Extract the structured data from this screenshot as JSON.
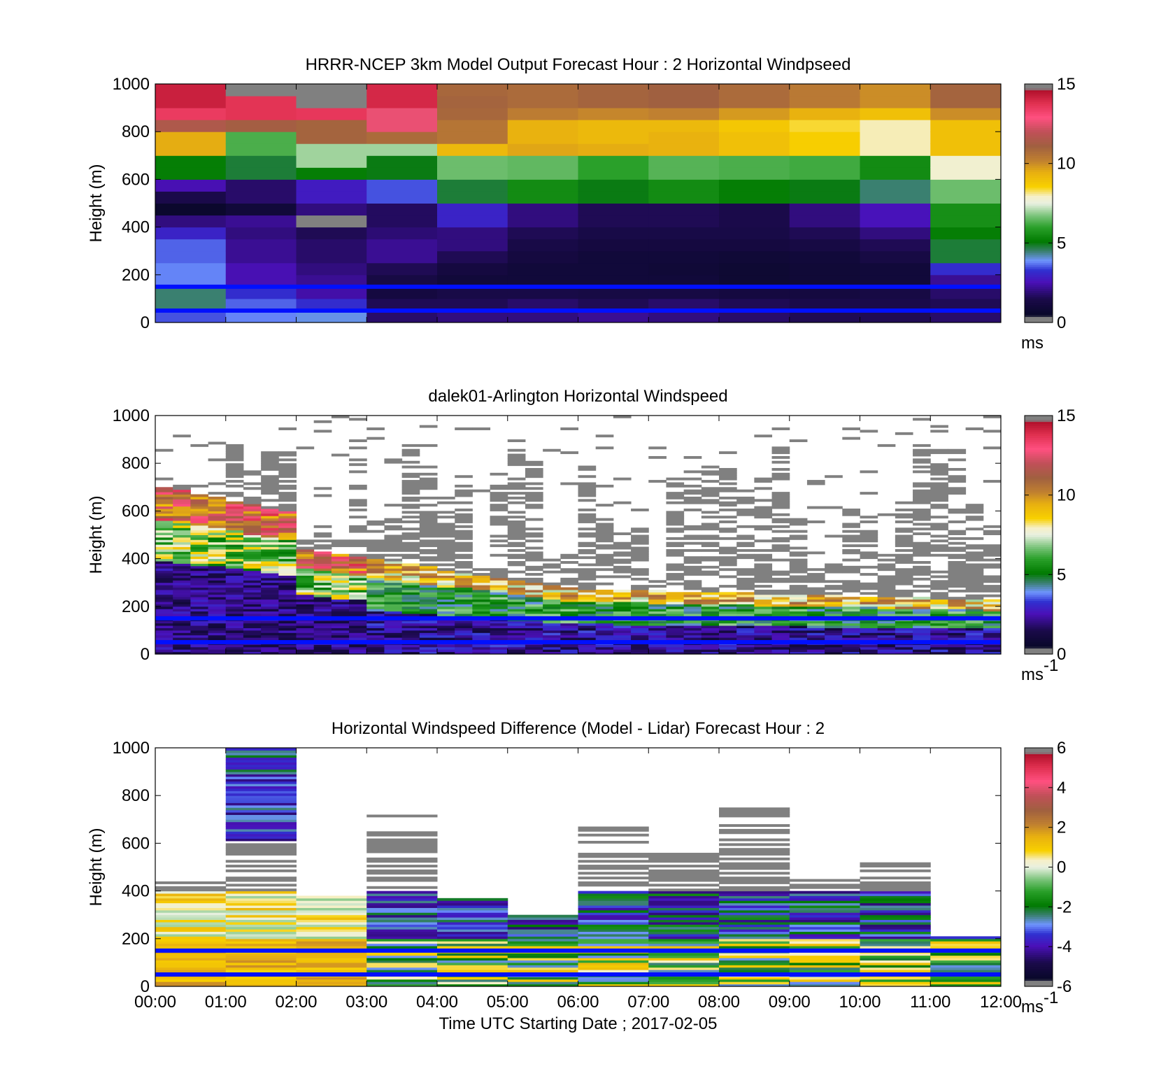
{
  "chart_data": [
    {
      "type": "heatmap",
      "title": "HRRR-NCEP 3km Model Output   Forecast Hour : 2 Horizontal Windpseed",
      "ylabel": "Height (m)",
      "xlabel": "",
      "ylim": [
        0,
        1000
      ],
      "xlim": [
        0,
        12
      ],
      "yticks": [
        0,
        200,
        400,
        600,
        800,
        1000
      ],
      "colorbar": {
        "range": [
          0,
          15
        ],
        "ticks": [
          0,
          5,
          10,
          15
        ],
        "unit": "ms",
        "unit_exp": ""
      },
      "heights": [
        25,
        75,
        125,
        175,
        225,
        275,
        325,
        375,
        425,
        475,
        525,
        575,
        625,
        675,
        725,
        775,
        825,
        875,
        925,
        975
      ],
      "columns": [
        {
          "x": 0,
          "values": [
            3.5,
            4.5,
            4.5,
            3.8,
            3.8,
            3.6,
            3.6,
            3.0,
            2.0,
            0.6,
            1.5,
            2.5,
            5.2,
            5.2,
            9.5,
            9.5,
            11.5,
            13.5,
            14.2,
            14.2
          ]
        },
        {
          "x": 1,
          "values": [
            3.8,
            3.6,
            3.2,
            2.5,
            2.5,
            2.2,
            2.2,
            2.0,
            2.2,
            1.0,
            1.8,
            1.8,
            4.8,
            4.8,
            6.3,
            6.3,
            11.2,
            13.7,
            13.7,
            15.5
          ]
        },
        {
          "x": 2,
          "values": [
            4.0,
            3.2,
            2.4,
            2.2,
            2.0,
            1.8,
            1.8,
            1.6,
            15.5,
            2.0,
            2.8,
            2.8,
            5.2,
            7.0,
            7.0,
            11.0,
            11.0,
            13.6,
            15.5,
            15.5
          ]
        },
        {
          "x": 3,
          "values": [
            1.8,
            1.6,
            1.2,
            1.3,
            1.6,
            2.2,
            2.2,
            1.9,
            1.7,
            1.7,
            3.5,
            3.5,
            5.0,
            5.0,
            7.0,
            10.8,
            12.6,
            12.6,
            14.0,
            14.0
          ]
        },
        {
          "x": 4,
          "values": [
            2.0,
            1.6,
            1.4,
            1.0,
            1.2,
            1.6,
            2.0,
            2.0,
            3.0,
            3.0,
            4.8,
            4.8,
            6.6,
            6.6,
            9.2,
            10.5,
            10.5,
            10.9,
            11.0,
            10.9
          ]
        },
        {
          "x": 5,
          "values": [
            2.0,
            1.8,
            1.4,
            1.0,
            1.0,
            1.2,
            1.4,
            1.6,
            2.0,
            2.0,
            5.5,
            5.5,
            6.5,
            6.5,
            9.6,
            9.4,
            9.4,
            10.3,
            10.8,
            10.8
          ]
        },
        {
          "x": 6,
          "values": [
            2.2,
            1.6,
            1.3,
            1.0,
            1.0,
            1.0,
            1.2,
            1.4,
            1.6,
            1.6,
            5.0,
            5.0,
            6.0,
            6.0,
            9.5,
            9.2,
            9.2,
            10.1,
            11.0,
            11.0
          ]
        },
        {
          "x": 7,
          "values": [
            2.0,
            1.8,
            1.3,
            1.0,
            0.9,
            1.0,
            1.2,
            1.4,
            1.6,
            1.6,
            5.5,
            5.5,
            6.4,
            6.4,
            9.4,
            9.4,
            9.2,
            10.2,
            11.1,
            11.1
          ]
        },
        {
          "x": 8,
          "values": [
            1.8,
            1.6,
            1.2,
            0.8,
            0.8,
            0.9,
            1.2,
            1.4,
            1.5,
            1.5,
            5.2,
            5.2,
            6.3,
            6.3,
            9.0,
            9.0,
            8.8,
            9.8,
            10.8,
            10.8
          ]
        },
        {
          "x": 9,
          "values": [
            1.6,
            1.5,
            1.2,
            0.9,
            0.9,
            1.0,
            1.3,
            1.6,
            2.0,
            2.0,
            5.0,
            5.0,
            6.2,
            6.2,
            8.6,
            8.6,
            8.4,
            9.4,
            10.4,
            10.4
          ]
        },
        {
          "x": 10,
          "values": [
            1.6,
            1.5,
            1.3,
            1.0,
            1.0,
            1.3,
            1.6,
            2.0,
            2.6,
            2.6,
            4.5,
            4.5,
            5.5,
            5.5,
            8.0,
            8.0,
            8.0,
            9.0,
            10.0,
            10.0
          ]
        },
        {
          "x": 11,
          "values": [
            1.8,
            1.6,
            1.8,
            2.2,
            3.2,
            4.8,
            4.8,
            5.2,
            5.6,
            5.6,
            6.6,
            6.6,
            7.8,
            7.8,
            9.0,
            9.0,
            9.0,
            10.0,
            11.0,
            11.0
          ]
        }
      ]
    },
    {
      "type": "heatmap",
      "title": "dalek01-Arlington  Horizontal Windspeed",
      "ylabel": "Height (m)",
      "xlabel": "",
      "ylim": [
        0,
        1000
      ],
      "xlim": [
        0,
        12
      ],
      "yticks": [
        0,
        200,
        400,
        600,
        800,
        1000
      ],
      "colorbar": {
        "range": [
          0,
          15
        ],
        "ticks": [
          0,
          5,
          10,
          15
        ],
        "unit": "ms",
        "unit_exp": "-1"
      }
    },
    {
      "type": "heatmap",
      "title": "Horizontal Windspeed Difference (Model - Lidar) Forecast Hour : 2",
      "ylabel": "Height (m)",
      "xlabel": "Time UTC  Starting Date ; 2017-02-05",
      "ylim": [
        0,
        1000
      ],
      "xlim": [
        0,
        12
      ],
      "yticks": [
        0,
        200,
        400,
        600,
        800,
        1000
      ],
      "xticks": [
        "00:00",
        "01:00",
        "02:00",
        "03:00",
        "04:00",
        "05:00",
        "06:00",
        "07:00",
        "08:00",
        "09:00",
        "10:00",
        "11:00",
        "12:00"
      ],
      "colorbar": {
        "range": [
          -6,
          6
        ],
        "ticks": [
          -6,
          -4,
          -2,
          0,
          2,
          4,
          6
        ],
        "unit": "ms",
        "unit_exp": "-1"
      }
    }
  ]
}
